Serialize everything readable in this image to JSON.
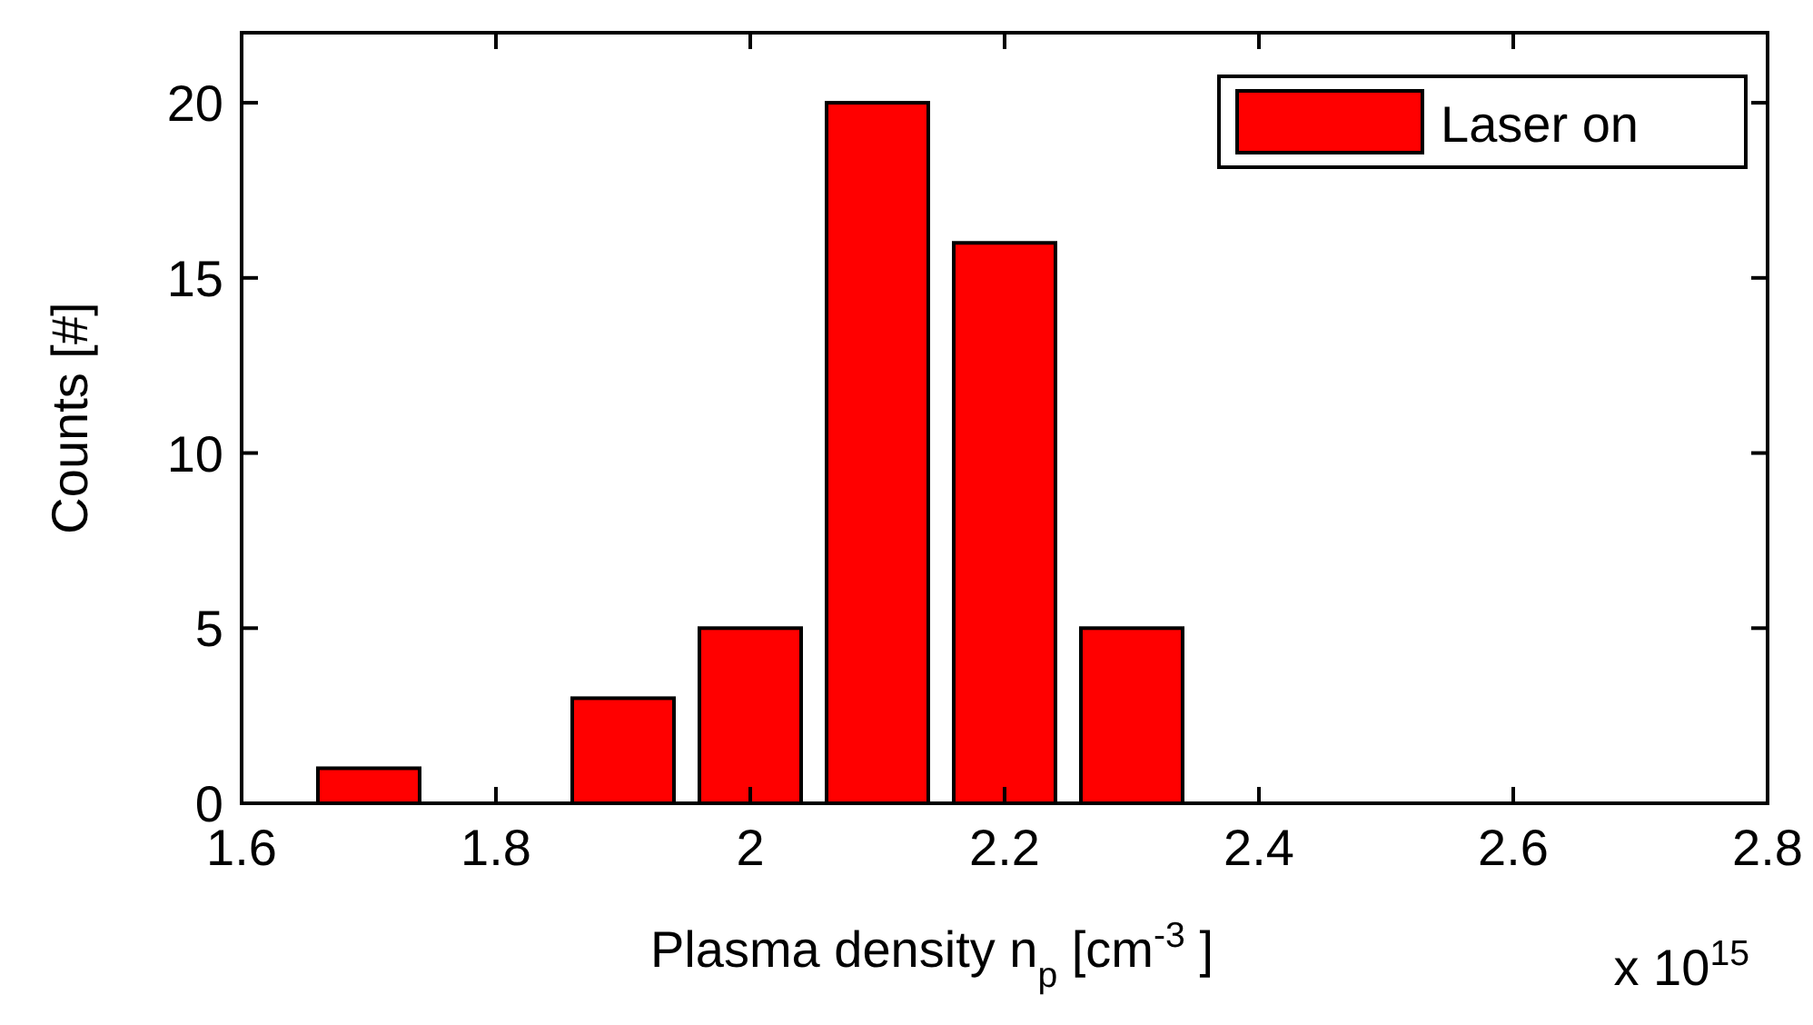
{
  "chart_data": {
    "type": "bar",
    "xlabel": "Plasma density n$_{p}$ [cm$^{-3}$]",
    "ylabel": "Counts [#]",
    "annotations": [
      "x 10$^{15}$"
    ],
    "x": [
      1.7,
      1.8,
      1.9,
      2.0,
      2.1,
      2.2,
      2.3
    ],
    "series": [
      {
        "name": "Laser on",
        "color": "#ff0000",
        "values": [
          1,
          0,
          3,
          5,
          20,
          16,
          5
        ]
      }
    ],
    "xlim": [
      1.6,
      2.8
    ],
    "xticks": [
      1.6,
      1.8,
      2,
      2.2,
      2.4,
      2.6,
      2.8
    ],
    "ylim": [
      0,
      22
    ],
    "yticks": [
      0,
      5,
      10,
      15,
      20
    ],
    "legend": "top right",
    "grid": false
  }
}
